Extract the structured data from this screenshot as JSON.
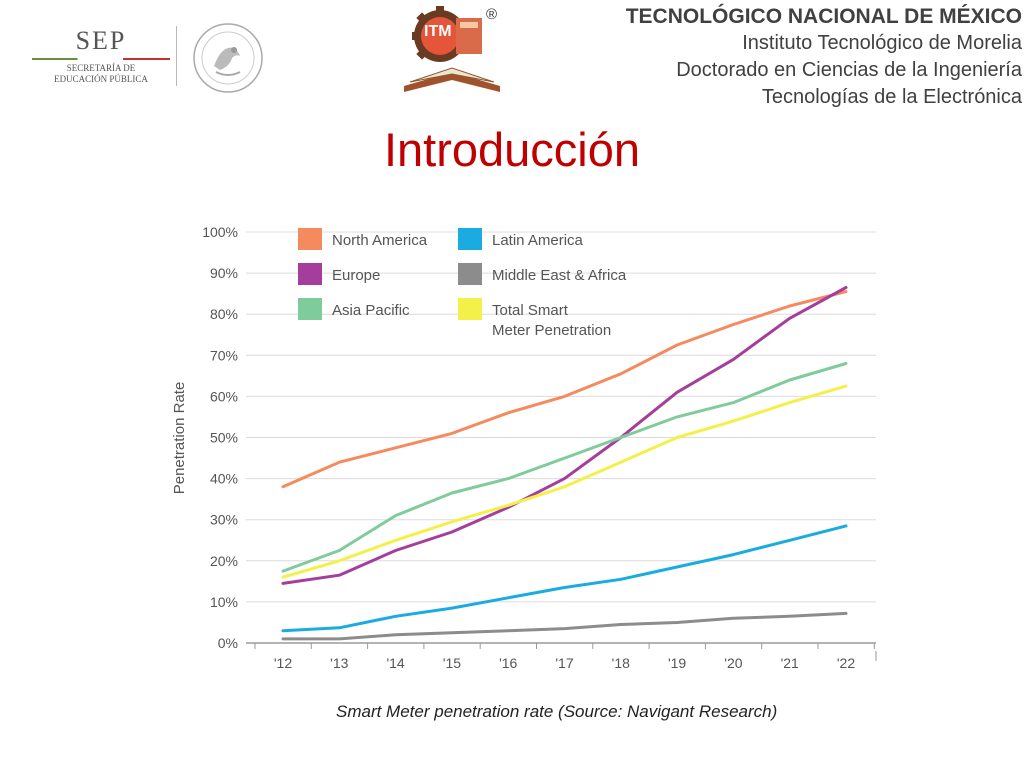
{
  "header": {
    "sep_logo_text": "SEP",
    "sep_sub_1": "SECRETARÍA DE",
    "sep_sub_2": "EDUCACIÓN PÚBLICA",
    "registered_mark": "®",
    "institution_lines": [
      "TECNOLÓGICO NACIONAL DE MÉXICO",
      "Instituto Tecnológico de Morelia",
      "Doctorado en Ciencias de la Ingeniería",
      "Tecnologías de la Electrónica"
    ]
  },
  "slide": {
    "title": "Introducción"
  },
  "caption": "Smart Meter penetration rate (Source: Navigant Research)",
  "chart_data": {
    "type": "line",
    "ylabel": "Penetration Rate",
    "xlabel": "",
    "x": [
      "'12",
      "'13",
      "'14",
      "'15",
      "'16",
      "'17",
      "'18",
      "'19",
      "'20",
      "'21",
      "'22"
    ],
    "y_ticks": [
      "0%",
      "10%",
      "20%",
      "30%",
      "40%",
      "50%",
      "60%",
      "70%",
      "80%",
      "90%",
      "100%"
    ],
    "ylim": [
      0,
      100
    ],
    "legend_position": "top-left",
    "series": [
      {
        "name": "North America",
        "color": "#f58a5f",
        "values": [
          38,
          44,
          47.5,
          51,
          56,
          60,
          65.5,
          72.5,
          77.5,
          82,
          85.5
        ]
      },
      {
        "name": "Latin America",
        "color": "#1aabe0",
        "values": [
          3,
          3.7,
          6.5,
          8.5,
          11,
          13.5,
          15.5,
          18.5,
          21.5,
          25,
          28.5
        ]
      },
      {
        "name": "Europe",
        "color": "#a43d9c",
        "values": [
          14.5,
          16.5,
          22.5,
          27,
          33,
          40,
          50,
          61,
          69,
          79,
          86.5
        ]
      },
      {
        "name": "Middle East & Africa",
        "color": "#8c8c8c",
        "values": [
          1,
          1,
          2,
          2.5,
          3,
          3.5,
          4.5,
          5,
          6,
          6.5,
          7.2
        ]
      },
      {
        "name": "Asia Pacific",
        "color": "#7fcb9b",
        "values": [
          17.5,
          22.5,
          31,
          36.5,
          40,
          45,
          50,
          55,
          58.5,
          64,
          68
        ]
      },
      {
        "name": "Total Smart\nMeter Penetration",
        "color": "#f4f04a",
        "values": [
          16,
          20,
          25,
          29.5,
          33.5,
          38,
          44,
          50,
          54,
          58.5,
          62.5
        ]
      }
    ]
  }
}
